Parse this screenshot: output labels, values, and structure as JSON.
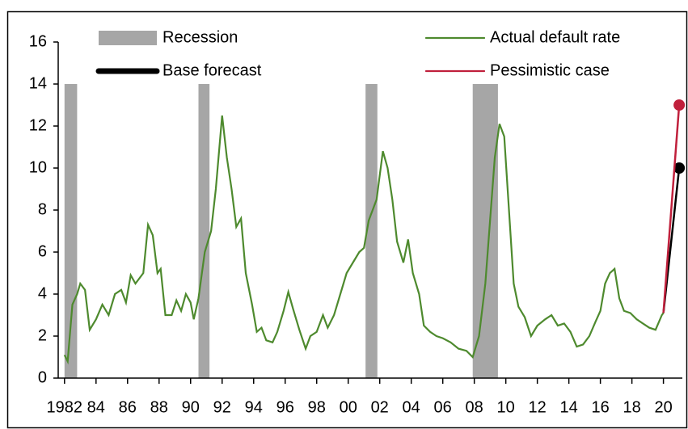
{
  "chart_data": {
    "type": "line",
    "xlim": [
      1981.6,
      2021.2
    ],
    "xticks": [
      1982,
      {
        "value": 1984,
        "label": "84"
      },
      {
        "value": 1986,
        "label": "86"
      },
      {
        "value": 1988,
        "label": "88"
      },
      {
        "value": 1990,
        "label": "90"
      },
      {
        "value": 1992,
        "label": "92"
      },
      {
        "value": 1994,
        "label": "94"
      },
      {
        "value": 1996,
        "label": "96"
      },
      {
        "value": 1998,
        "label": "98"
      },
      {
        "value": 2000,
        "label": "00"
      },
      {
        "value": 2002,
        "label": "02"
      },
      {
        "value": 2004,
        "label": "04"
      },
      {
        "value": 2006,
        "label": "06"
      },
      {
        "value": 2008,
        "label": "08"
      },
      {
        "value": 2010,
        "label": "10"
      },
      {
        "value": 2012,
        "label": "12"
      },
      {
        "value": 2014,
        "label": "14"
      },
      {
        "value": 2016,
        "label": "16"
      },
      {
        "value": 2018,
        "label": "18"
      },
      {
        "value": 2020,
        "label": "20"
      }
    ],
    "ylim": [
      0,
      16
    ],
    "yticks": [
      0,
      2,
      4,
      6,
      8,
      10,
      12,
      14,
      16
    ],
    "grid": false,
    "series": [
      {
        "name": "Recession",
        "kind": "band",
        "color": "#a6a6a6",
        "x_start": [
          1982.0,
          1990.5,
          2001.1,
          2007.9
        ],
        "x_end": [
          1982.8,
          1991.2,
          2001.85,
          2009.5
        ],
        "values": [
          14,
          14,
          14,
          14
        ]
      },
      {
        "name": "Base forecast",
        "kind": "line",
        "color": "#000000",
        "end_marker": true,
        "x": [
          2020.0,
          2021.0
        ],
        "values": [
          3.1,
          10.0
        ]
      },
      {
        "name": "Actual default rate",
        "kind": "line",
        "color": "#4e8a2e",
        "end_marker": false,
        "x": [
          1982.0,
          1982.2,
          1982.5,
          1982.8,
          1983.0,
          1983.3,
          1983.6,
          1984.0,
          1984.4,
          1984.8,
          1985.2,
          1985.6,
          1985.9,
          1986.2,
          1986.5,
          1987.0,
          1987.3,
          1987.6,
          1987.9,
          1988.1,
          1988.4,
          1988.8,
          1989.1,
          1989.4,
          1989.7,
          1990.0,
          1990.2,
          1990.5,
          1990.9,
          1991.3,
          1991.6,
          1992.0,
          1992.3,
          1992.6,
          1992.9,
          1993.2,
          1993.5,
          1993.9,
          1994.2,
          1994.5,
          1994.8,
          1995.2,
          1995.5,
          1995.9,
          1996.2,
          1996.5,
          1996.9,
          1997.3,
          1997.6,
          1998.0,
          1998.4,
          1998.7,
          1999.1,
          1999.5,
          1999.9,
          2000.3,
          2000.7,
          2001.0,
          2001.3,
          2001.8,
          2002.2,
          2002.5,
          2002.8,
          2003.1,
          2003.5,
          2003.8,
          2004.1,
          2004.5,
          2004.8,
          2005.2,
          2005.6,
          2006.0,
          2006.5,
          2007.0,
          2007.5,
          2007.9,
          2008.3,
          2008.7,
          2009.0,
          2009.3,
          2009.6,
          2009.9,
          2010.2,
          2010.5,
          2010.8,
          2011.2,
          2011.6,
          2012.0,
          2012.5,
          2012.9,
          2013.3,
          2013.7,
          2014.1,
          2014.5,
          2014.9,
          2015.3,
          2015.7,
          2016.0,
          2016.3,
          2016.6,
          2016.9,
          2017.2,
          2017.5,
          2017.9,
          2018.3,
          2018.7,
          2019.1,
          2019.5,
          2019.9,
          2020.0
        ],
        "values": [
          1.1,
          0.8,
          3.5,
          4.0,
          4.5,
          4.2,
          2.3,
          2.8,
          3.5,
          3.0,
          4.0,
          4.2,
          3.6,
          4.9,
          4.5,
          5.0,
          7.3,
          6.8,
          5.0,
          5.2,
          3.0,
          3.0,
          3.7,
          3.2,
          4.0,
          3.6,
          2.8,
          3.8,
          6.0,
          7.0,
          9.0,
          12.5,
          10.5,
          9.0,
          7.2,
          7.6,
          5.0,
          3.5,
          2.2,
          2.4,
          1.8,
          1.7,
          2.2,
          3.2,
          4.1,
          3.3,
          2.3,
          1.4,
          2.0,
          2.2,
          3.0,
          2.4,
          3.0,
          4.0,
          5.0,
          5.5,
          6.0,
          6.2,
          7.5,
          8.5,
          10.8,
          10.0,
          8.5,
          6.5,
          5.5,
          6.6,
          5.0,
          4.0,
          2.5,
          2.2,
          2.0,
          1.9,
          1.7,
          1.4,
          1.3,
          1.0,
          2.0,
          4.5,
          7.5,
          10.5,
          12.1,
          11.5,
          8.0,
          4.5,
          3.4,
          2.9,
          2.0,
          2.5,
          2.8,
          3.0,
          2.5,
          2.6,
          2.2,
          1.5,
          1.6,
          2.0,
          2.7,
          3.2,
          4.5,
          5.0,
          5.2,
          3.8,
          3.2,
          3.1,
          2.8,
          2.6,
          2.4,
          2.3,
          3.0,
          3.1
        ]
      },
      {
        "name": "Pessimistic case",
        "kind": "line",
        "color": "#c0203c",
        "end_marker": true,
        "x": [
          2020.0,
          2021.0
        ],
        "values": [
          3.1,
          13.0
        ]
      }
    ]
  }
}
